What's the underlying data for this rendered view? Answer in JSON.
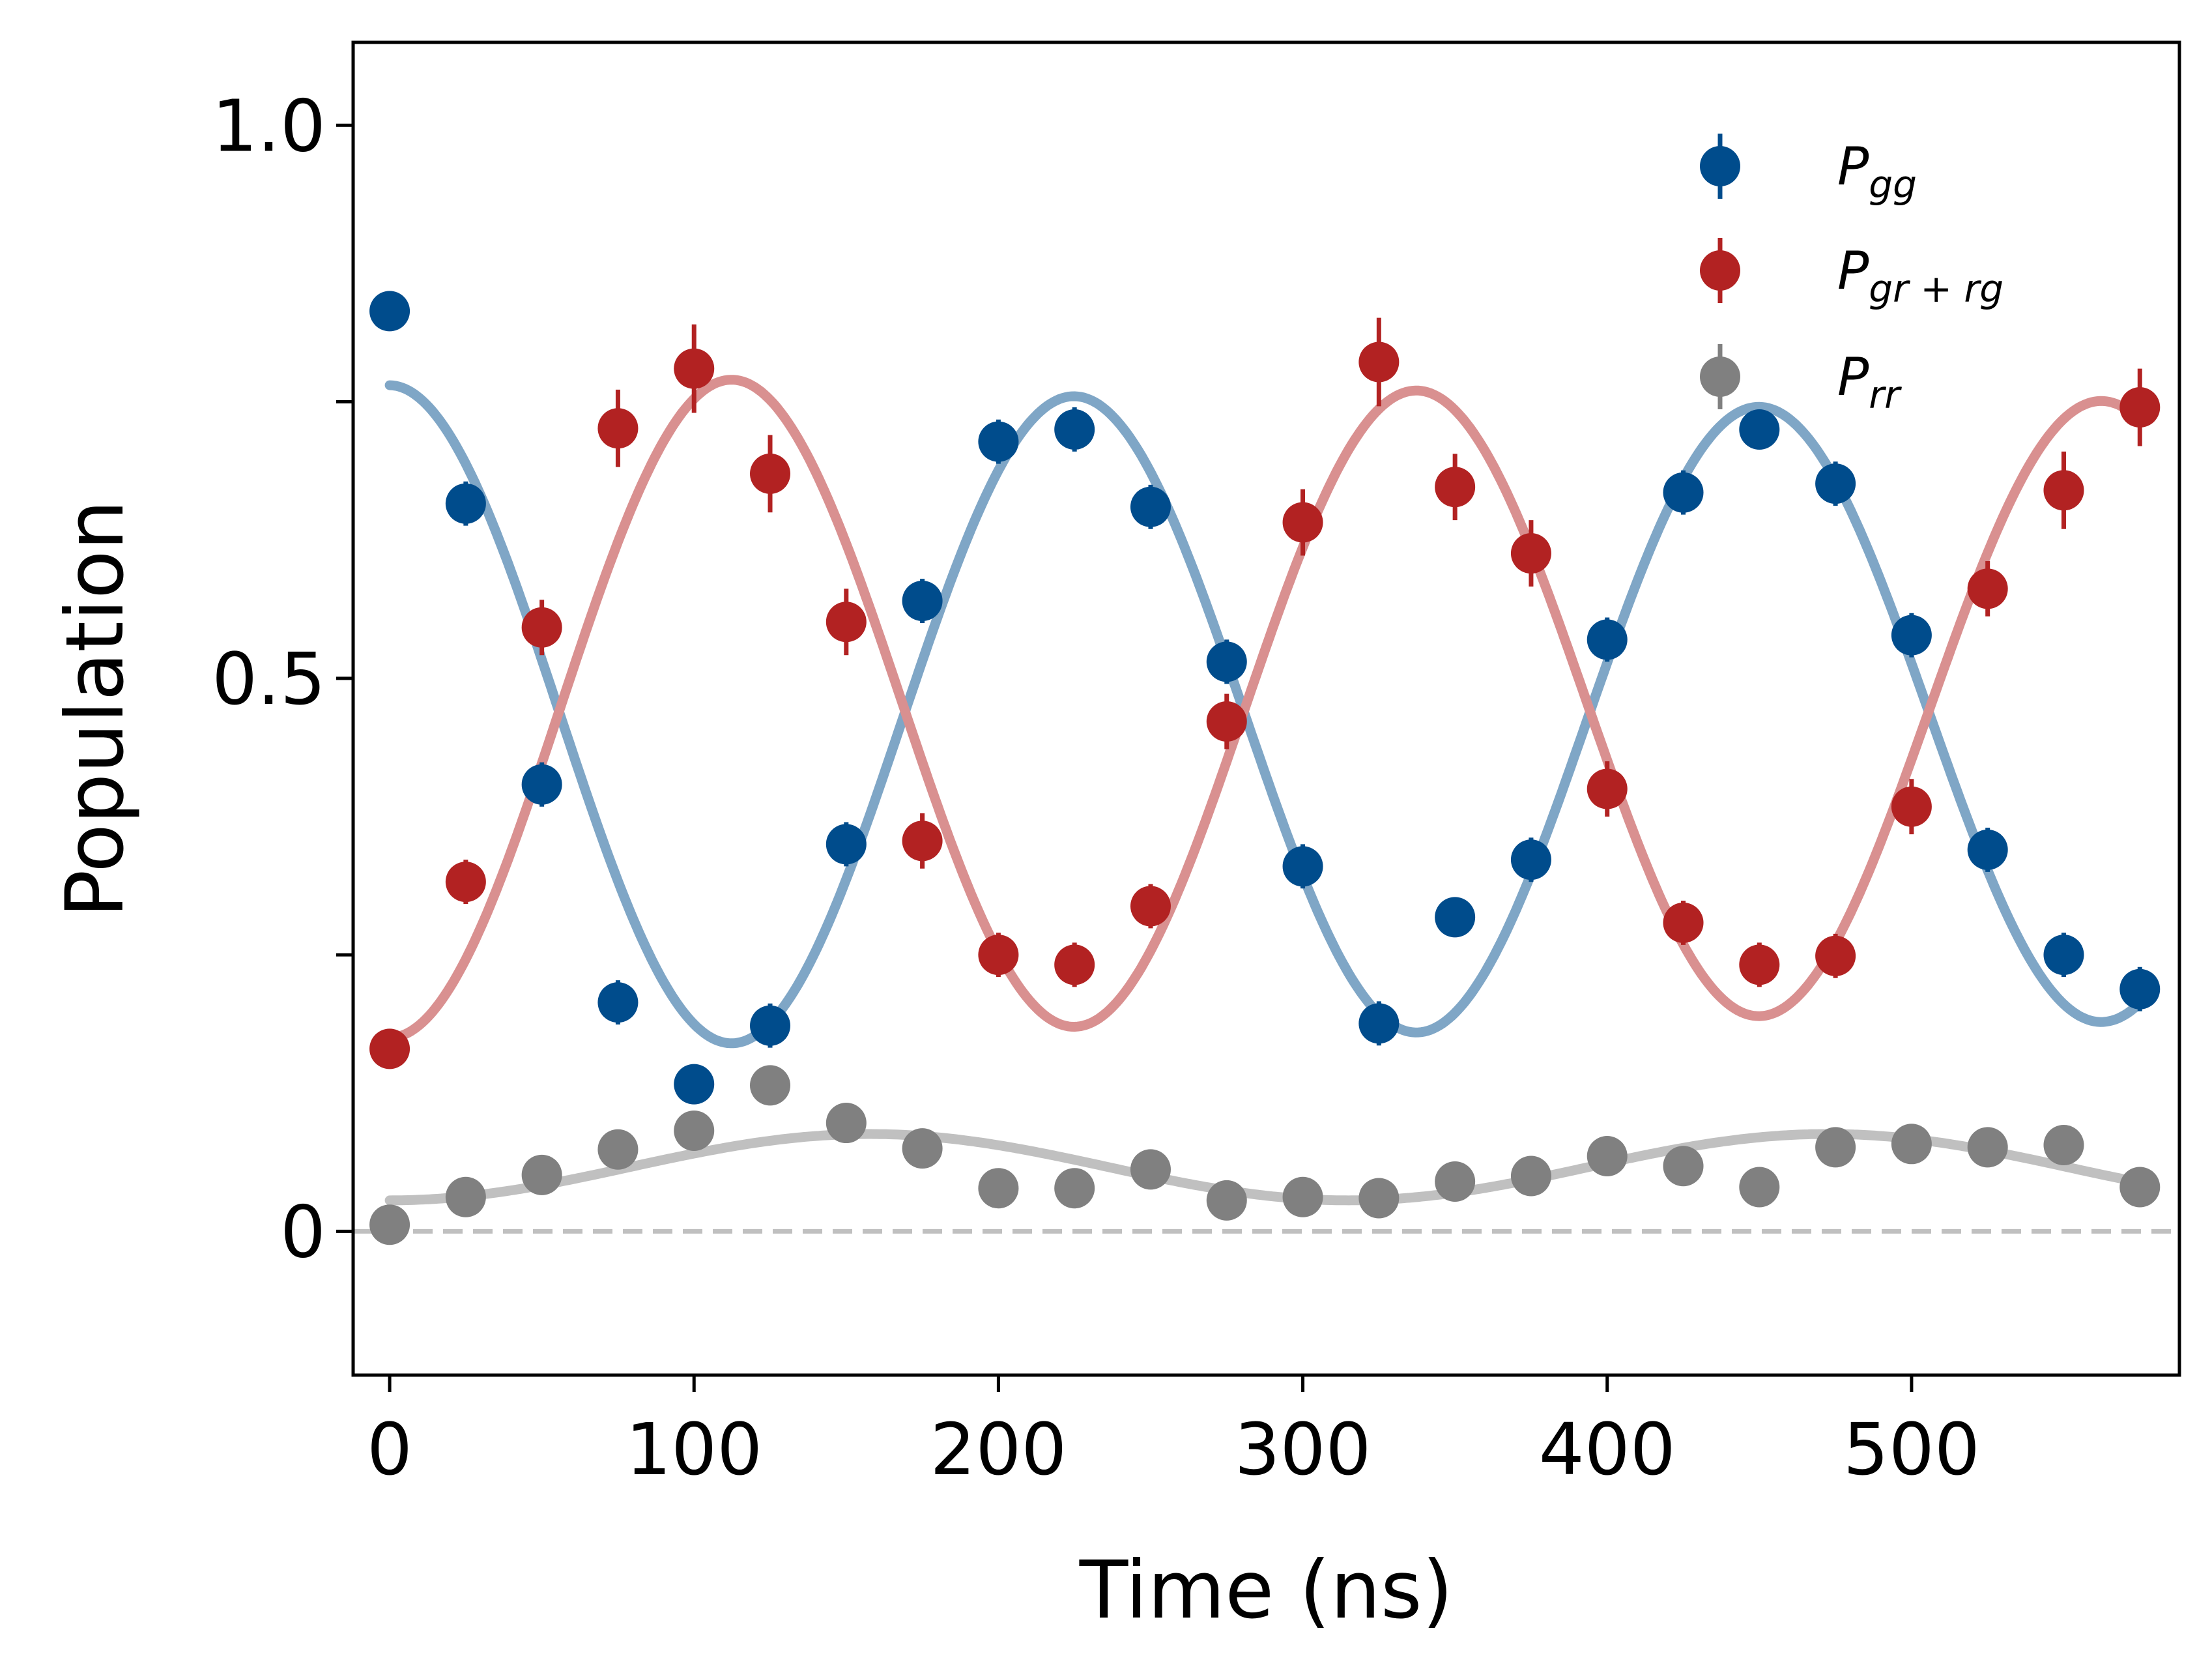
{
  "chart_data": {
    "type": "scatter",
    "title": "",
    "xlabel": "Time (ns)",
    "ylabel": "Population",
    "xlim": [
      -12,
      588
    ],
    "ylim": [
      -0.13,
      1.075
    ],
    "xticks": [
      0,
      100,
      200,
      300,
      400,
      500
    ],
    "xtick_labels": [
      "0",
      "100",
      "200",
      "300",
      "400",
      "500"
    ],
    "yticks": [
      0,
      0.25,
      0.5,
      0.75,
      1.0
    ],
    "ytick_labels": [
      "0",
      "",
      "0.5",
      "",
      "1.0"
    ],
    "grid": false,
    "legend_position": "top-right",
    "baseline": 0,
    "x": [
      0,
      25,
      50,
      75,
      100,
      125,
      150,
      175,
      200,
      225,
      250,
      275,
      300,
      325,
      350,
      375,
      400,
      425,
      450,
      475,
      500,
      525,
      550,
      575
    ],
    "series": [
      {
        "name": "P_gg",
        "label_main": "P",
        "label_sub": "gg",
        "color": "#004c8c",
        "fit_color": "#7fa6c6",
        "values": [
          0.832,
          0.658,
          0.404,
          0.207,
          0.133,
          0.186,
          0.35,
          0.57,
          0.714,
          0.725,
          0.655,
          0.515,
          0.33,
          0.188,
          0.284,
          0.336,
          0.535,
          0.668,
          0.725,
          0.676,
          0.539,
          0.345,
          0.25,
          0.219
        ],
        "errors": [
          0.012,
          0.02,
          0.02,
          0.02,
          0.015,
          0.02,
          0.02,
          0.02,
          0.02,
          0.02,
          0.02,
          0.02,
          0.02,
          0.02,
          0.015,
          0.02,
          0.02,
          0.02,
          0.015,
          0.02,
          0.02,
          0.02,
          0.02,
          0.02
        ],
        "fit": {
          "offset": 0.465,
          "amplitude": 0.3,
          "damping_per_ns": 0.00015,
          "period_ns": 225,
          "phase_ns": 0
        }
      },
      {
        "name": "P_gr+rg",
        "label_main": "P",
        "label_sub": "gr + rg",
        "color": "#b22222",
        "fit_color": "#d99090",
        "values": [
          0.165,
          0.316,
          0.546,
          0.726,
          0.78,
          0.685,
          0.551,
          0.353,
          0.25,
          0.241,
          0.294,
          0.461,
          0.641,
          0.786,
          0.673,
          0.613,
          0.4,
          0.279,
          0.241,
          0.249,
          0.384,
          0.581,
          0.67,
          0.745
        ],
        "errors": [
          0.012,
          0.02,
          0.025,
          0.035,
          0.04,
          0.035,
          0.03,
          0.025,
          0.02,
          0.02,
          0.02,
          0.025,
          0.03,
          0.04,
          0.03,
          0.03,
          0.025,
          0.02,
          0.02,
          0.02,
          0.025,
          0.025,
          0.035,
          0.035
        ],
        "fit": {
          "offset": 0.475,
          "amplitude": -0.3,
          "damping_per_ns": 0.00015,
          "period_ns": 225,
          "phase_ns": 0
        }
      },
      {
        "name": "P_rr",
        "label_main": "P",
        "label_sub": "rr",
        "color": "#808080",
        "fit_color": "#c0c0c0",
        "values": [
          0.006,
          0.031,
          0.051,
          0.074,
          0.091,
          0.132,
          0.098,
          0.075,
          0.039,
          0.039,
          0.056,
          0.028,
          0.031,
          0.03,
          0.045,
          0.05,
          0.068,
          0.059,
          0.04,
          0.076,
          0.079,
          0.076,
          0.078,
          0.04
        ],
        "errors": [
          0,
          0,
          0,
          0,
          0,
          0,
          0,
          0,
          0,
          0,
          0,
          0,
          0,
          0,
          0,
          0,
          0,
          0,
          0,
          0,
          0,
          0,
          0,
          0
        ],
        "fit": {
          "offset": 0.058,
          "amplitude": -0.03,
          "damping_per_ns": 0.0,
          "period_ns": 315,
          "phase_ns": 0
        }
      }
    ]
  }
}
